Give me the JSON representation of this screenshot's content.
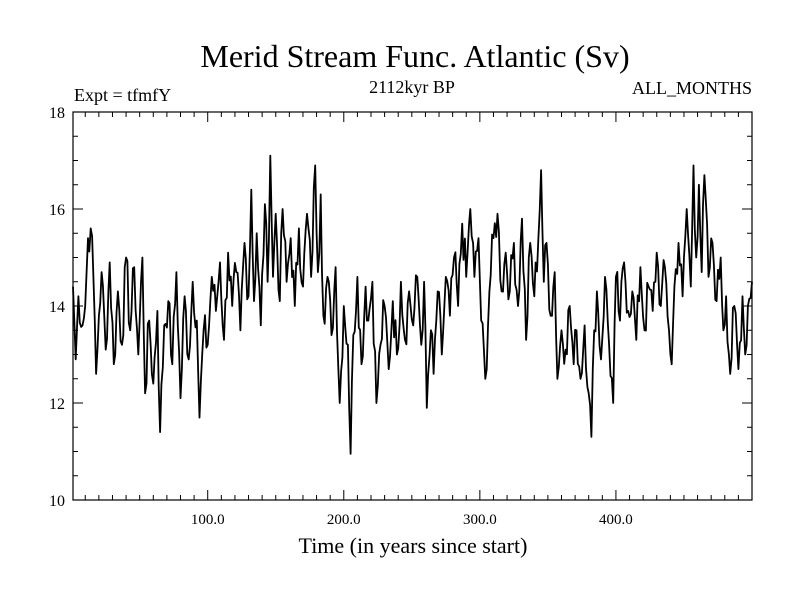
{
  "chart_data": {
    "type": "line",
    "title": "Merid Stream Func. Atlantic (Sv)",
    "subtitle_left": "Expt = tfmfY",
    "subtitle_center": "2112kyr BP",
    "subtitle_right": "ALL_MONTHS",
    "xlabel": "Time (in years since start)",
    "ylabel": "",
    "xlim": [
      1,
      500
    ],
    "ylim": [
      10,
      18
    ],
    "xticks": [
      100,
      200,
      300,
      400
    ],
    "xtick_labels": [
      "100.0",
      "200.0",
      "300.0",
      "400.0"
    ],
    "yticks": [
      10,
      12,
      14,
      16,
      18
    ],
    "ytick_labels": [
      "10",
      "12",
      "14",
      "16",
      "18"
    ],
    "grid": false,
    "series": [
      {
        "name": "Merid Stream Func. Atlantic",
        "anchors": [
          [
            1,
            14.4
          ],
          [
            3,
            12.9
          ],
          [
            5,
            14.2
          ],
          [
            8,
            13.6
          ],
          [
            10,
            14.0
          ],
          [
            12,
            15.4
          ],
          [
            14,
            15.6
          ],
          [
            16,
            14.6
          ],
          [
            18,
            12.6
          ],
          [
            20,
            13.8
          ],
          [
            22,
            14.7
          ],
          [
            25,
            13.1
          ],
          [
            28,
            14.9
          ],
          [
            31,
            12.8
          ],
          [
            34,
            14.3
          ],
          [
            37,
            13.2
          ],
          [
            40,
            15.0
          ],
          [
            43,
            13.5
          ],
          [
            46,
            14.8
          ],
          [
            49,
            13.0
          ],
          [
            52,
            15.0
          ],
          [
            54,
            12.2
          ],
          [
            57,
            13.7
          ],
          [
            60,
            12.4
          ],
          [
            63,
            13.9
          ],
          [
            65,
            11.4
          ],
          [
            68,
            13.6
          ],
          [
            71,
            14.1
          ],
          [
            74,
            12.8
          ],
          [
            77,
            14.7
          ],
          [
            80,
            12.1
          ],
          [
            83,
            14.2
          ],
          [
            86,
            12.9
          ],
          [
            89,
            14.5
          ],
          [
            92,
            13.7
          ],
          [
            94,
            11.7
          ],
          [
            97,
            13.5
          ],
          [
            100,
            13.2
          ],
          [
            103,
            14.6
          ],
          [
            106,
            13.9
          ],
          [
            109,
            14.9
          ],
          [
            112,
            13.3
          ],
          [
            115,
            15.1
          ],
          [
            118,
            14.0
          ],
          [
            121,
            14.7
          ],
          [
            124,
            13.5
          ],
          [
            127,
            15.3
          ],
          [
            130,
            14.2
          ],
          [
            132,
            16.4
          ],
          [
            134,
            14.1
          ],
          [
            136,
            15.5
          ],
          [
            139,
            13.6
          ],
          [
            142,
            16.1
          ],
          [
            144,
            14.5
          ],
          [
            146,
            17.1
          ],
          [
            148,
            14.6
          ],
          [
            150,
            15.9
          ],
          [
            153,
            14.1
          ],
          [
            155,
            16.0
          ],
          [
            158,
            14.5
          ],
          [
            161,
            15.4
          ],
          [
            164,
            14.0
          ],
          [
            167,
            15.6
          ],
          [
            170,
            14.4
          ],
          [
            173,
            15.9
          ],
          [
            176,
            14.6
          ],
          [
            179,
            16.9
          ],
          [
            181,
            14.7
          ],
          [
            183,
            16.3
          ],
          [
            185,
            13.8
          ],
          [
            188,
            14.6
          ],
          [
            191,
            13.4
          ],
          [
            194,
            14.8
          ],
          [
            197,
            12.0
          ],
          [
            200,
            14.0
          ],
          [
            203,
            13.2
          ],
          [
            205,
            10.95
          ],
          [
            207,
            13.4
          ],
          [
            210,
            14.6
          ],
          [
            213,
            12.8
          ],
          [
            216,
            14.4
          ],
          [
            218,
            13.7
          ],
          [
            221,
            14.5
          ],
          [
            224,
            12.0
          ],
          [
            227,
            13.2
          ],
          [
            230,
            14.0
          ],
          [
            233,
            12.7
          ],
          [
            236,
            14.1
          ],
          [
            239,
            13.0
          ],
          [
            242,
            14.5
          ],
          [
            245,
            13.3
          ],
          [
            248,
            14.3
          ],
          [
            251,
            13.6
          ],
          [
            254,
            14.6
          ],
          [
            257,
            13.2
          ],
          [
            259,
            14.5
          ],
          [
            261,
            11.9
          ],
          [
            264,
            13.5
          ],
          [
            266,
            12.6
          ],
          [
            269,
            14.3
          ],
          [
            272,
            13.0
          ],
          [
            275,
            14.6
          ],
          [
            278,
            13.8
          ],
          [
            281,
            15.0
          ],
          [
            284,
            14.0
          ],
          [
            287,
            15.7
          ],
          [
            290,
            14.6
          ],
          [
            293,
            16.0
          ],
          [
            296,
            14.6
          ],
          [
            299,
            15.4
          ],
          [
            301,
            13.7
          ],
          [
            304,
            12.5
          ],
          [
            307,
            14.3
          ],
          [
            310,
            15.4
          ],
          [
            313,
            15.9
          ],
          [
            316,
            14.3
          ],
          [
            319,
            15.1
          ],
          [
            322,
            14.3
          ],
          [
            325,
            15.3
          ],
          [
            328,
            14.0
          ],
          [
            331,
            15.8
          ],
          [
            334,
            13.3
          ],
          [
            337,
            15.3
          ],
          [
            340,
            14.2
          ],
          [
            343,
            15.4
          ],
          [
            345,
            16.8
          ],
          [
            347,
            14.5
          ],
          [
            349,
            15.3
          ],
          [
            352,
            13.8
          ],
          [
            355,
            14.7
          ],
          [
            357,
            12.5
          ],
          [
            360,
            13.5
          ],
          [
            363,
            13.1
          ],
          [
            366,
            14.0
          ],
          [
            369,
            12.8
          ],
          [
            371,
            13.5
          ],
          [
            374,
            12.5
          ],
          [
            377,
            13.6
          ],
          [
            380,
            12.2
          ],
          [
            382,
            11.3
          ],
          [
            384,
            13.5
          ],
          [
            386,
            14.3
          ],
          [
            389,
            12.9
          ],
          [
            392,
            14.6
          ],
          [
            395,
            13.2
          ],
          [
            398,
            12.0
          ],
          [
            400,
            14.6
          ],
          [
            403,
            13.7
          ],
          [
            406,
            14.9
          ],
          [
            409,
            13.9
          ],
          [
            412,
            14.3
          ],
          [
            415,
            13.3
          ],
          [
            418,
            14.8
          ],
          [
            421,
            13.5
          ],
          [
            424,
            14.4
          ],
          [
            427,
            13.9
          ],
          [
            430,
            15.1
          ],
          [
            433,
            14.0
          ],
          [
            436,
            14.8
          ],
          [
            439,
            13.5
          ],
          [
            441,
            12.8
          ],
          [
            443,
            14.4
          ],
          [
            446,
            15.3
          ],
          [
            449,
            14.2
          ],
          [
            452,
            16.0
          ],
          [
            455,
            14.4
          ],
          [
            457,
            16.9
          ],
          [
            459,
            15.0
          ],
          [
            461,
            16.5
          ],
          [
            463,
            14.7
          ],
          [
            465,
            16.7
          ],
          [
            468,
            14.6
          ],
          [
            471,
            15.3
          ],
          [
            474,
            14.1
          ],
          [
            477,
            15.0
          ],
          [
            479,
            13.5
          ],
          [
            481,
            14.2
          ],
          [
            484,
            12.6
          ],
          [
            487,
            14.0
          ],
          [
            490,
            12.7
          ],
          [
            493,
            14.2
          ],
          [
            495,
            13.0
          ],
          [
            497,
            14.0
          ],
          [
            500,
            14.5
          ]
        ]
      }
    ]
  }
}
